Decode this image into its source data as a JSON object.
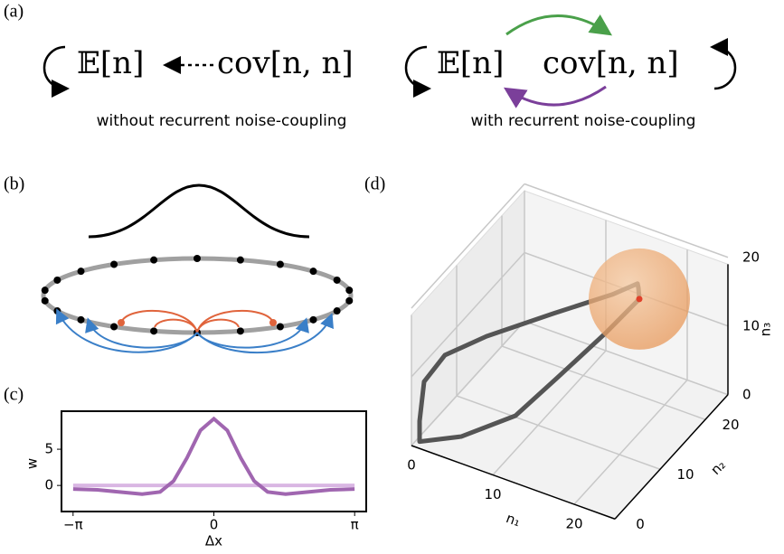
{
  "panels": {
    "a": {
      "label": "(a)",
      "left": {
        "mean": "𝔼[n]",
        "cov": "cov[n, n]",
        "caption": "without recurrent noise-coupling"
      },
      "right": {
        "mean": "𝔼[n]",
        "cov": "cov[n, n]",
        "caption": "with recurrent noise-coupling"
      }
    },
    "b": {
      "label": "(b)"
    },
    "c": {
      "label": "(c)"
    },
    "d": {
      "label": "(d)"
    }
  },
  "chart_data": [
    {
      "type": "line",
      "xlabel": "Δx",
      "ylabel": "w",
      "x": [
        -3.14,
        -2.6,
        -2.1,
        -1.6,
        -1.2,
        -0.9,
        -0.6,
        -0.3,
        0,
        0.3,
        0.6,
        0.9,
        1.2,
        1.6,
        2.1,
        2.6,
        3.14
      ],
      "series": [
        {
          "color": "#a066b0",
          "values": [
            -0.5,
            -0.6,
            -0.9,
            -1.2,
            -0.9,
            0.6,
            3.8,
            7.6,
            9.2,
            7.6,
            3.8,
            0.6,
            -0.9,
            -1.2,
            -0.9,
            -0.6,
            -0.5
          ]
        },
        {
          "color": "#d9b6e3",
          "values": [
            0,
            0,
            0,
            0,
            0,
            0,
            0,
            0,
            0,
            0,
            0,
            0,
            0,
            0,
            0,
            0,
            0
          ]
        }
      ],
      "xlim": [
        -3.4,
        3.4
      ],
      "ylim": [
        -3.6,
        10.25
      ],
      "xticks": [
        {
          "value": -3.1416,
          "label": "−π"
        },
        0,
        {
          "value": 3.1416,
          "label": "π"
        }
      ],
      "yticks": [
        0,
        5
      ]
    },
    {
      "type": "line3d",
      "xlabel": "n₁",
      "ylabel": "n₂",
      "zlabel": "n₃",
      "color": "#555555",
      "x": [
        18,
        16,
        13,
        10,
        5,
        1,
        1,
        1,
        3,
        7,
        13,
        18,
        20,
        19,
        18
      ],
      "y": [
        18,
        14,
        9,
        5,
        2,
        0,
        0,
        1,
        2,
        4,
        8,
        12,
        14,
        16,
        18
      ],
      "z": [
        16,
        13,
        9,
        5,
        2,
        1,
        4,
        9,
        13,
        16,
        19,
        21,
        22,
        19.5,
        16
      ],
      "xlim": [
        0,
        25
      ],
      "ylim": [
        0,
        25
      ],
      "zlim": [
        0,
        19
      ],
      "xticks": [
        0,
        10,
        20
      ],
      "yticks": [
        0,
        10,
        20
      ],
      "zticks": [
        0,
        10,
        20
      ]
    }
  ]
}
